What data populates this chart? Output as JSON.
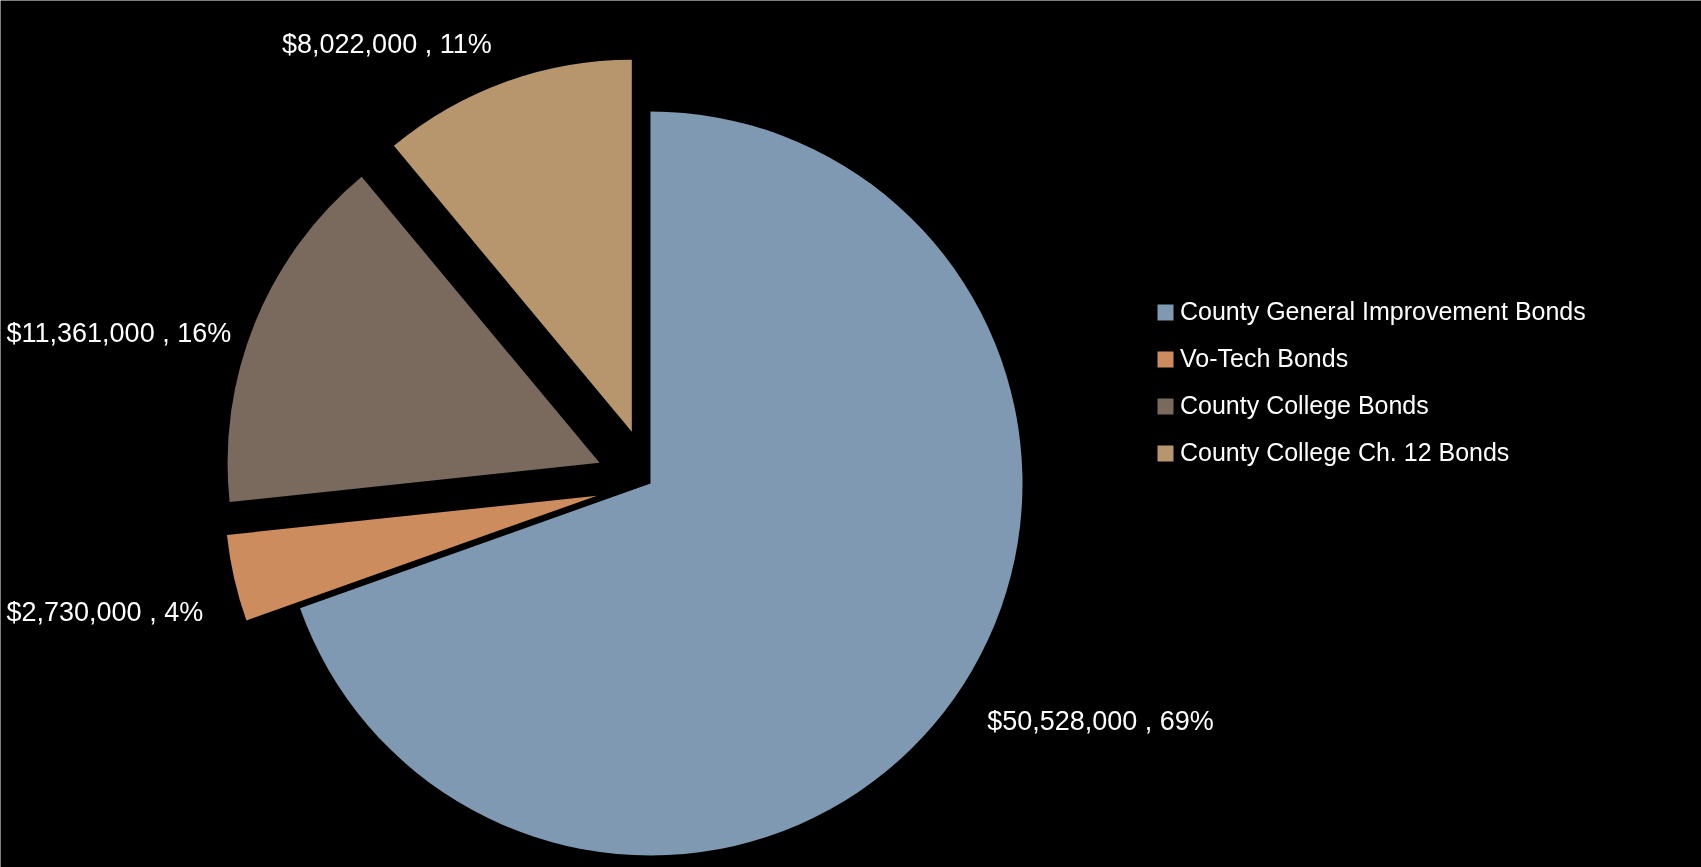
{
  "chart_data": {
    "type": "pie",
    "categories": [
      "County General Improvement Bonds",
      "Vo-Tech Bonds",
      "County College Bonds",
      "County College Ch. 12 Bonds"
    ],
    "values": [
      50528000,
      2730000,
      11361000,
      8022000
    ],
    "colors": [
      "#7f99b2",
      "#cc8c5e",
      "#7a6a5e",
      "#b7966e"
    ],
    "value_labels": [
      "$50,528,000 , 69%",
      "$2,730,000 , 4%",
      "$11,361,000 , 16%",
      "$8,022,000 , 11%"
    ],
    "legend": "right"
  }
}
